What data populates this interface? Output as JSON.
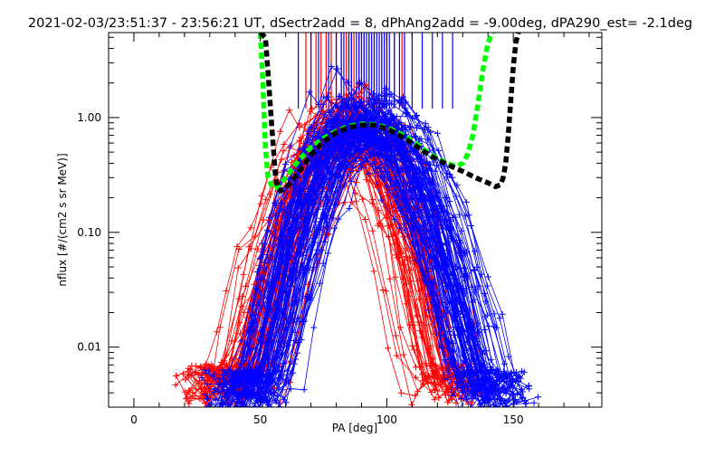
{
  "chart_data": {
    "type": "line",
    "title": "2021-02-03/23:51:37 - 23:56:21 UT, dSectr2add = 8, dPhAng2add = -9.00deg, dPA290_est=  -2.1deg",
    "xlabel": "PA [deg]",
    "ylabel": "nflux [#/(cm2 s sr MeV)]",
    "xlim": [
      -10,
      185
    ],
    "ylim": [
      0.003,
      5.5
    ],
    "y_scale": "log",
    "x_ticks": [
      0,
      50,
      100,
      150
    ],
    "x_tick_labels": [
      "0",
      "50",
      "100",
      "150"
    ],
    "y_ticks": [
      0.01,
      0.1,
      1.0
    ],
    "y_tick_labels": [
      "0.01",
      "0.10",
      "1.00"
    ],
    "colors": {
      "red": "#ff0000",
      "blue": "#0000ff",
      "green": "#00ff00",
      "black": "#000000"
    },
    "vertical_marker_lines": {
      "red_x": [
        68,
        70,
        72,
        74,
        76,
        78,
        80,
        82,
        84,
        86,
        87,
        89,
        91,
        93,
        95,
        98,
        100,
        103,
        106
      ],
      "blue_x": [
        65,
        70,
        73,
        77,
        80,
        82,
        83,
        85,
        86,
        88,
        89,
        90,
        91,
        92,
        93,
        94,
        95,
        96,
        97,
        98,
        99,
        100,
        101,
        103,
        105,
        107,
        110,
        114,
        118,
        122,
        126
      ],
      "y_from": 1.2
    },
    "series": [
      {
        "color": "red",
        "marker": "plus",
        "count": 70,
        "x_range": [
          15,
          145
        ],
        "peak_x": 86,
        "peak_value": 0.8,
        "lo_value": 0.0045,
        "width_left": 13,
        "width_right": 11,
        "scatter_dex": 0.24
      },
      {
        "color": "blue",
        "marker": "plus",
        "count": 95,
        "x_range": [
          25,
          162
        ],
        "peak_x": 91,
        "peak_value": 0.85,
        "lo_value": 0.004,
        "width_left": 12,
        "width_right": 14,
        "scatter_dex": 0.2
      },
      {
        "color": "green",
        "style": "dashed",
        "x": [
          50,
          51,
          52,
          53,
          55,
          57,
          60,
          65,
          70,
          75,
          80,
          85,
          90,
          95,
          100,
          105,
          110,
          115,
          120,
          125,
          128,
          130,
          132,
          134,
          136,
          138,
          140,
          142
        ],
        "y": [
          5.5,
          2.0,
          0.55,
          0.3,
          0.24,
          0.25,
          0.3,
          0.42,
          0.55,
          0.66,
          0.76,
          0.84,
          0.88,
          0.87,
          0.82,
          0.73,
          0.63,
          0.52,
          0.44,
          0.39,
          0.38,
          0.4,
          0.48,
          0.7,
          1.3,
          2.6,
          4.5,
          5.5
        ]
      },
      {
        "color": "black",
        "style": "dashed",
        "x": [
          50,
          52,
          53,
          54,
          55,
          56,
          57,
          58,
          60,
          65,
          70,
          75,
          80,
          85,
          90,
          95,
          100,
          105,
          110,
          115,
          120,
          125,
          130,
          135,
          140,
          143,
          145,
          146,
          147,
          148,
          149,
          150,
          151,
          152
        ],
        "y": [
          5.5,
          5.0,
          2.5,
          1.2,
          0.6,
          0.3,
          0.24,
          0.23,
          0.24,
          0.33,
          0.47,
          0.62,
          0.74,
          0.82,
          0.86,
          0.86,
          0.8,
          0.7,
          0.6,
          0.5,
          0.43,
          0.38,
          0.34,
          0.3,
          0.27,
          0.25,
          0.26,
          0.3,
          0.4,
          0.7,
          1.4,
          2.8,
          4.5,
          5.5
        ]
      }
    ]
  }
}
